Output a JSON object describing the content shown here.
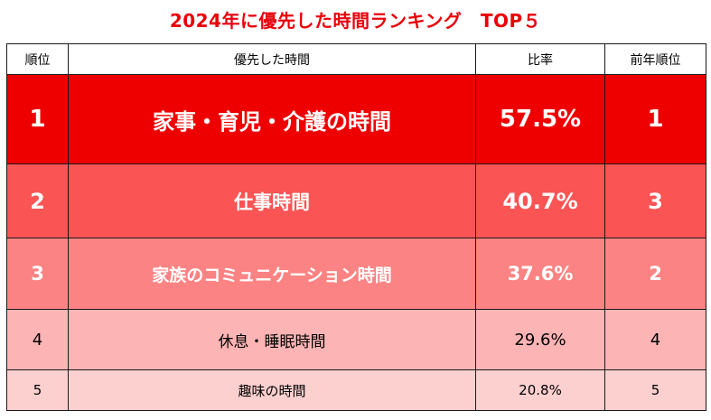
{
  "title": "2024年に優先した時間ランキング　TOP５",
  "headers": {
    "rank": "順位",
    "item": "優先した時間",
    "ratio": "比率",
    "prev_rank": "前年順位"
  },
  "rows": [
    {
      "rank": "1",
      "item": "家事・育児・介護の時間",
      "ratio": "57.5%",
      "prev_rank": "1"
    },
    {
      "rank": "2",
      "item": "仕事時間",
      "ratio": "40.7%",
      "prev_rank": "3"
    },
    {
      "rank": "3",
      "item": "家族のコミュニケーション時間",
      "ratio": "37.6%",
      "prev_rank": "2"
    },
    {
      "rank": "4",
      "item": "休息・睡眠時間",
      "ratio": "29.6%",
      "prev_rank": "4"
    },
    {
      "rank": "5",
      "item": "趣味の時間",
      "ratio": "20.8%",
      "prev_rank": "5"
    }
  ],
  "colors": {
    "title": "#e8000b",
    "row_fills": [
      "#ee0000",
      "#fa5454",
      "#fc8383",
      "#fdb4b4",
      "#fdd0d0"
    ],
    "border": "#1a1a1a"
  }
}
